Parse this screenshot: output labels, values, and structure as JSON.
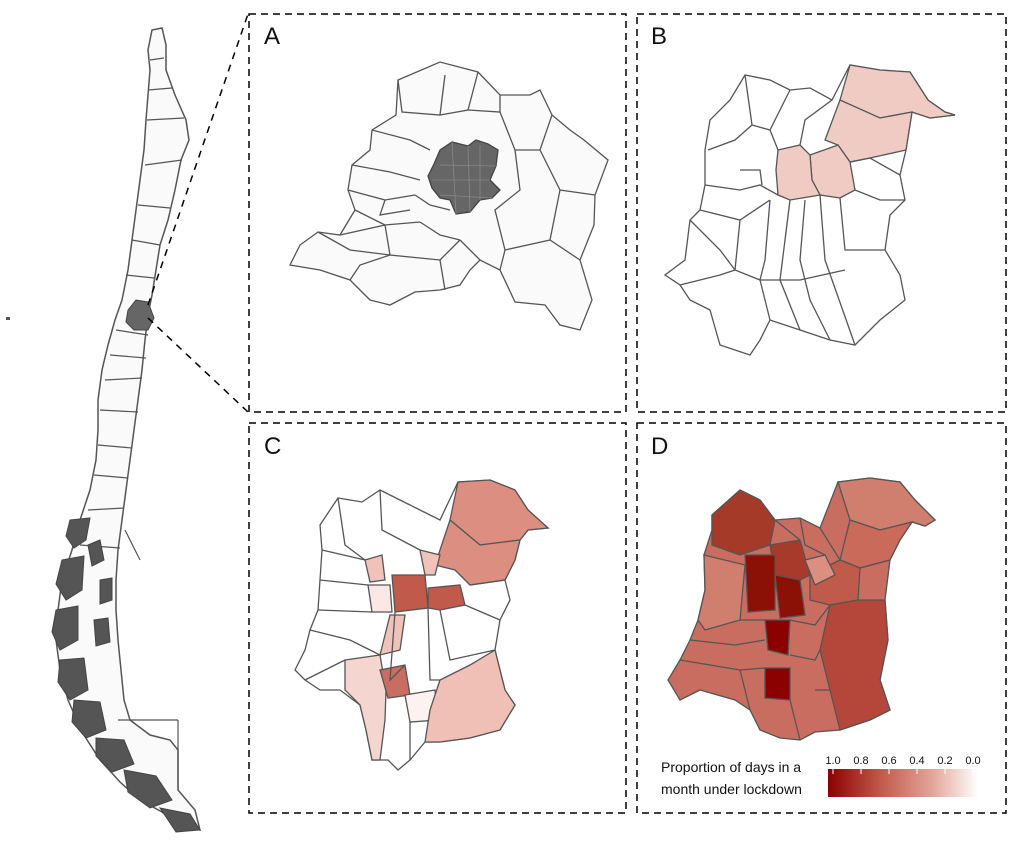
{
  "panels": [
    {
      "label": "A"
    },
    {
      "label": "B"
    },
    {
      "label": "C"
    },
    {
      "label": "D"
    }
  ],
  "legend": {
    "title_line1": "Proportion of days in a",
    "title_line2": "month under lockdown",
    "ticks": [
      "1.0",
      "0.8",
      "0.6",
      "0.4",
      "0.2",
      "0.0"
    ],
    "color_high": "#8b0000",
    "color_low": "#ffffff"
  },
  "colors": {
    "outline": "#555555",
    "highlight": "#666666",
    "region_fill": "#fafafa",
    "frame": "#000000"
  }
}
